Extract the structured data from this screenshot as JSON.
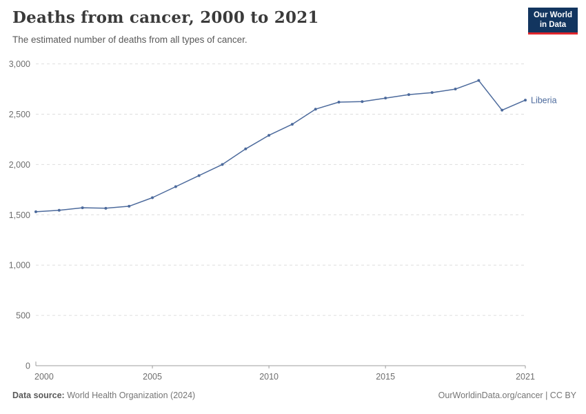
{
  "logo": {
    "line1": "Our World",
    "line2": "in Data",
    "bg_color": "#12355f",
    "accent_color": "#e0262c"
  },
  "chart_data": {
    "type": "line",
    "title": "Deaths from cancer, 2000 to 2021",
    "subtitle": "The estimated number of deaths from all types of cancer.",
    "xlabel": "",
    "ylabel": "",
    "xlim": [
      2000,
      2021
    ],
    "ylim": [
      0,
      3000
    ],
    "xticks": [
      2000,
      2005,
      2010,
      2015,
      2021
    ],
    "yticks": [
      0,
      500,
      1000,
      1500,
      2000,
      2500,
      3000
    ],
    "grid": "horizontal-dashed",
    "legend_position": "end-of-line-label",
    "series": [
      {
        "name": "Liberia",
        "color": "#4c6a9c",
        "x": [
          2000,
          2001,
          2002,
          2003,
          2004,
          2005,
          2006,
          2007,
          2008,
          2009,
          2010,
          2011,
          2012,
          2013,
          2014,
          2015,
          2016,
          2017,
          2018,
          2019,
          2020,
          2021
        ],
        "values": [
          1530,
          1545,
          1570,
          1565,
          1585,
          1670,
          1780,
          1890,
          2000,
          2155,
          2290,
          2400,
          2550,
          2620,
          2625,
          2660,
          2695,
          2715,
          2750,
          2835,
          2540,
          2640
        ]
      }
    ]
  },
  "footer": {
    "source_label": "Data source:",
    "source_value": " World Health Organization (2024)",
    "url": "OurWorldinData.org/cancer",
    "separator": " | ",
    "license": "CC BY"
  }
}
